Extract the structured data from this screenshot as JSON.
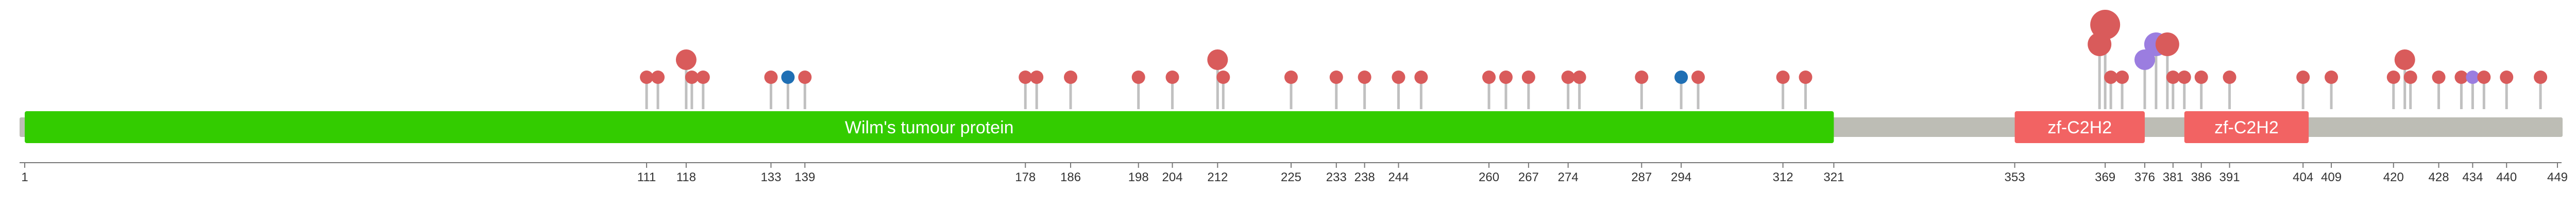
{
  "chart_data": {
    "type": "lollipop",
    "protein_length": 449,
    "colors": {
      "backbone": "#bdbdb5",
      "stem": "#c0c0c0",
      "missense": "#d95b5b",
      "truncating": "#1f6fb4",
      "multiple": "#9b7de0",
      "domain_primary": "#33cc00",
      "domain_zf": "#f26363"
    },
    "domains": [
      {
        "name": "Wilm's tumour protein",
        "start": 1,
        "end": 321,
        "color": "#33cc00"
      },
      {
        "name": "zf-C2H2",
        "start": 353,
        "end": 376,
        "color": "#f26363"
      },
      {
        "name": "zf-C2H2",
        "start": 383,
        "end": 405,
        "color": "#f26363"
      }
    ],
    "axis_ticks": [
      1,
      111,
      118,
      133,
      139,
      178,
      186,
      198,
      204,
      212,
      225,
      233,
      238,
      244,
      260,
      267,
      274,
      287,
      294,
      312,
      321,
      353,
      369,
      376,
      381,
      386,
      391,
      404,
      409,
      420,
      428,
      434,
      440,
      449
    ],
    "mutations": [
      {
        "position": 111,
        "count": 1,
        "type": "missense"
      },
      {
        "position": 113,
        "count": 1,
        "type": "missense"
      },
      {
        "position": 118,
        "count": 2,
        "type": "missense"
      },
      {
        "position": 119,
        "count": 1,
        "type": "missense"
      },
      {
        "position": 121,
        "count": 1,
        "type": "missense"
      },
      {
        "position": 133,
        "count": 1,
        "type": "missense"
      },
      {
        "position": 136,
        "count": 1,
        "type": "truncating"
      },
      {
        "position": 139,
        "count": 1,
        "type": "missense"
      },
      {
        "position": 178,
        "count": 1,
        "type": "missense"
      },
      {
        "position": 180,
        "count": 1,
        "type": "missense"
      },
      {
        "position": 186,
        "count": 1,
        "type": "missense"
      },
      {
        "position": 198,
        "count": 1,
        "type": "missense"
      },
      {
        "position": 204,
        "count": 1,
        "type": "missense"
      },
      {
        "position": 212,
        "count": 2,
        "type": "missense"
      },
      {
        "position": 213,
        "count": 1,
        "type": "missense"
      },
      {
        "position": 225,
        "count": 1,
        "type": "missense"
      },
      {
        "position": 233,
        "count": 1,
        "type": "missense"
      },
      {
        "position": 238,
        "count": 1,
        "type": "missense"
      },
      {
        "position": 244,
        "count": 1,
        "type": "missense"
      },
      {
        "position": 248,
        "count": 1,
        "type": "missense"
      },
      {
        "position": 260,
        "count": 1,
        "type": "missense"
      },
      {
        "position": 263,
        "count": 1,
        "type": "missense"
      },
      {
        "position": 267,
        "count": 1,
        "type": "missense"
      },
      {
        "position": 274,
        "count": 1,
        "type": "missense"
      },
      {
        "position": 276,
        "count": 1,
        "type": "missense"
      },
      {
        "position": 287,
        "count": 1,
        "type": "missense"
      },
      {
        "position": 294,
        "count": 1,
        "type": "truncating"
      },
      {
        "position": 297,
        "count": 1,
        "type": "missense"
      },
      {
        "position": 312,
        "count": 1,
        "type": "missense"
      },
      {
        "position": 316,
        "count": 1,
        "type": "missense"
      },
      {
        "position": 368,
        "count": 3,
        "type": "missense"
      },
      {
        "position": 369,
        "count": 4,
        "type": "missense"
      },
      {
        "position": 370,
        "count": 1,
        "type": "missense"
      },
      {
        "position": 372,
        "count": 1,
        "type": "missense"
      },
      {
        "position": 376,
        "count": 2,
        "type": "multiple"
      },
      {
        "position": 378,
        "count": 3,
        "type": "multiple"
      },
      {
        "position": 380,
        "count": 3,
        "type": "missense"
      },
      {
        "position": 381,
        "count": 1,
        "type": "missense"
      },
      {
        "position": 383,
        "count": 1,
        "type": "missense"
      },
      {
        "position": 386,
        "count": 1,
        "type": "missense"
      },
      {
        "position": 391,
        "count": 1,
        "type": "missense"
      },
      {
        "position": 404,
        "count": 1,
        "type": "missense"
      },
      {
        "position": 409,
        "count": 1,
        "type": "missense"
      },
      {
        "position": 420,
        "count": 1,
        "type": "missense"
      },
      {
        "position": 422,
        "count": 2,
        "type": "missense"
      },
      {
        "position": 423,
        "count": 1,
        "type": "missense"
      },
      {
        "position": 428,
        "count": 1,
        "type": "missense"
      },
      {
        "position": 432,
        "count": 1,
        "type": "missense"
      },
      {
        "position": 434,
        "count": 1,
        "type": "multiple"
      },
      {
        "position": 436,
        "count": 1,
        "type": "missense"
      },
      {
        "position": 440,
        "count": 1,
        "type": "missense"
      },
      {
        "position": 446,
        "count": 1,
        "type": "missense"
      }
    ]
  }
}
